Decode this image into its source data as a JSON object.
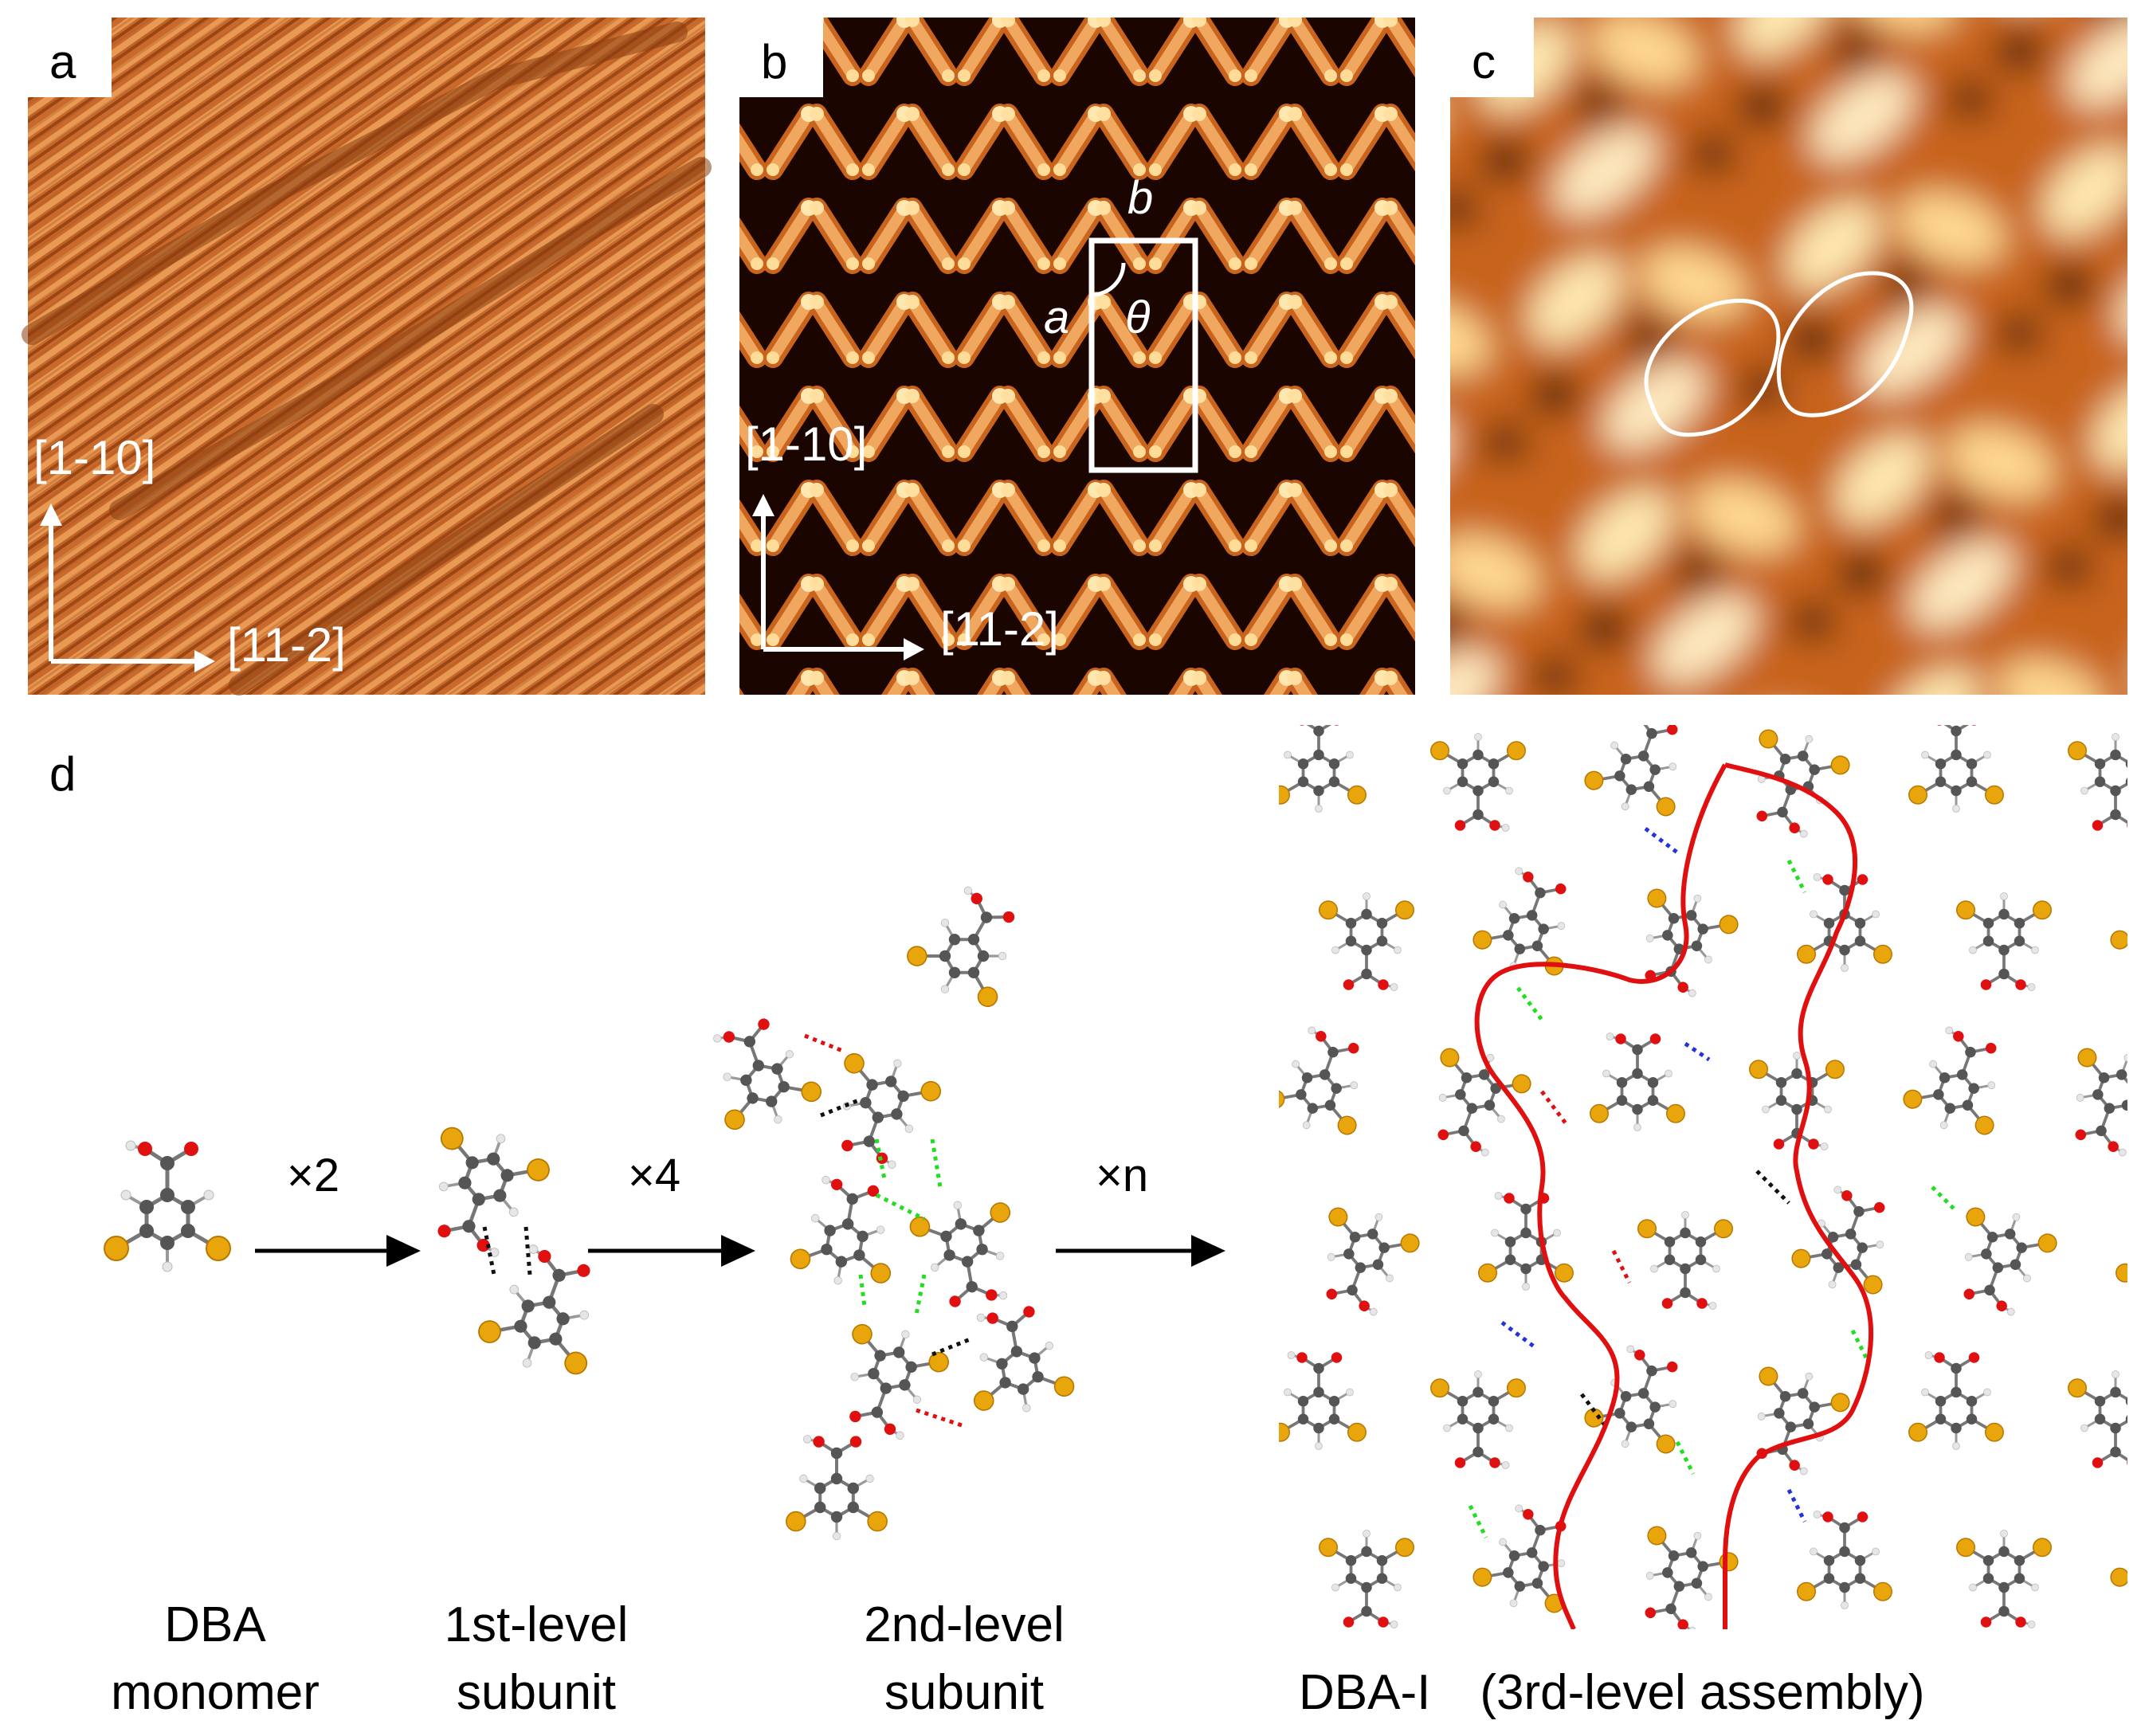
{
  "panels": {
    "a": {
      "letter": "a",
      "dir_vertical": "[1-10]",
      "dir_horizontal": "[11-2]"
    },
    "b": {
      "letter": "b",
      "dir_vertical": "[1-10]",
      "dir_horizontal": "[11-2]",
      "cell_a": "a",
      "cell_b": "b",
      "cell_theta": "θ"
    },
    "c": {
      "letter": "c"
    },
    "d": {
      "letter": "d"
    }
  },
  "scheme": {
    "steps": [
      {
        "multiplier": "×2",
        "caption_line1": "DBA",
        "caption_line2": "monomer"
      },
      {
        "multiplier": "×4",
        "caption_line1": "1st-level",
        "caption_line2": "subunit"
      },
      {
        "multiplier": "×n",
        "caption_line1": "2nd-level",
        "caption_line2": "subunit"
      }
    ],
    "final_caption": "DBA-I　(3rd-level assembly)"
  },
  "colors": {
    "stm_dark": "#1a0500",
    "stm_mid": "#c8641e",
    "stm_bright": "#ffe8b0",
    "bromine": "#e8a50c",
    "carbon": "#555555",
    "oxygen": "#e01010",
    "hydrogen": "#e6e6e6",
    "hbond_black": "#111111",
    "hbond_red": "#e01010",
    "hbond_green": "#22dd22",
    "hbond_blue": "#2233dd",
    "outline_red": "#e01010"
  }
}
